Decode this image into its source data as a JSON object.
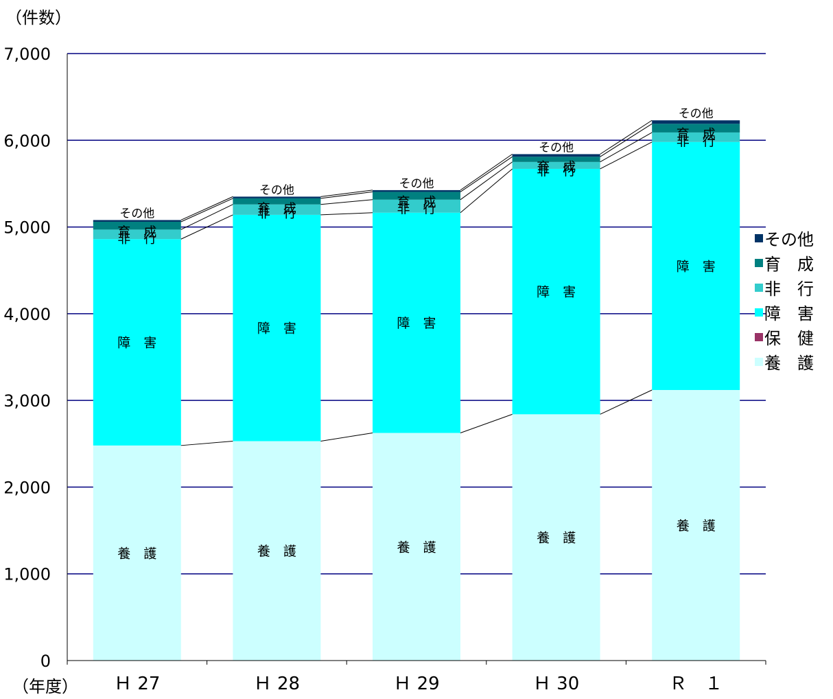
{
  "chart_data": {
    "type": "bar",
    "stacked": true,
    "y_unit_label": "（件数）",
    "x_unit_label": "（年度）",
    "categories": [
      "Ｈ 27",
      "Ｈ 28",
      "Ｈ 29",
      "Ｈ 30",
      "Ｒ　１"
    ],
    "ylim": [
      0,
      7000
    ],
    "yticks": [
      "0",
      "1,000",
      "2,000",
      "3,000",
      "4,000",
      "5,000",
      "6,000",
      "7,000"
    ],
    "ytick_values": [
      0,
      1000,
      2000,
      3000,
      4000,
      5000,
      6000,
      7000
    ],
    "grid": true,
    "legend_position": "right",
    "series": [
      {
        "name": "養　護",
        "bar_label": "養　護",
        "color": "#ccffff",
        "values": [
          2480,
          2530,
          2625,
          2840,
          3120
        ]
      },
      {
        "name": "保　健",
        "bar_label": "",
        "color": "#993366",
        "values": [
          0,
          0,
          0,
          0,
          0
        ]
      },
      {
        "name": "障　害",
        "bar_label": "障　害",
        "color": "#00ffff",
        "values": [
          2380,
          2610,
          2540,
          2830,
          2860
        ]
      },
      {
        "name": "非　行",
        "bar_label": "非　行",
        "color": "#33cccc",
        "values": [
          110,
          120,
          150,
          80,
          110
        ]
      },
      {
        "name": "育　成",
        "bar_label": "育　成",
        "color": "#008080",
        "values": [
          90,
          70,
          90,
          60,
          100
        ]
      },
      {
        "name": "その他",
        "bar_label": "その他",
        "color": "#003366",
        "values": [
          20,
          20,
          20,
          30,
          40
        ]
      }
    ]
  }
}
